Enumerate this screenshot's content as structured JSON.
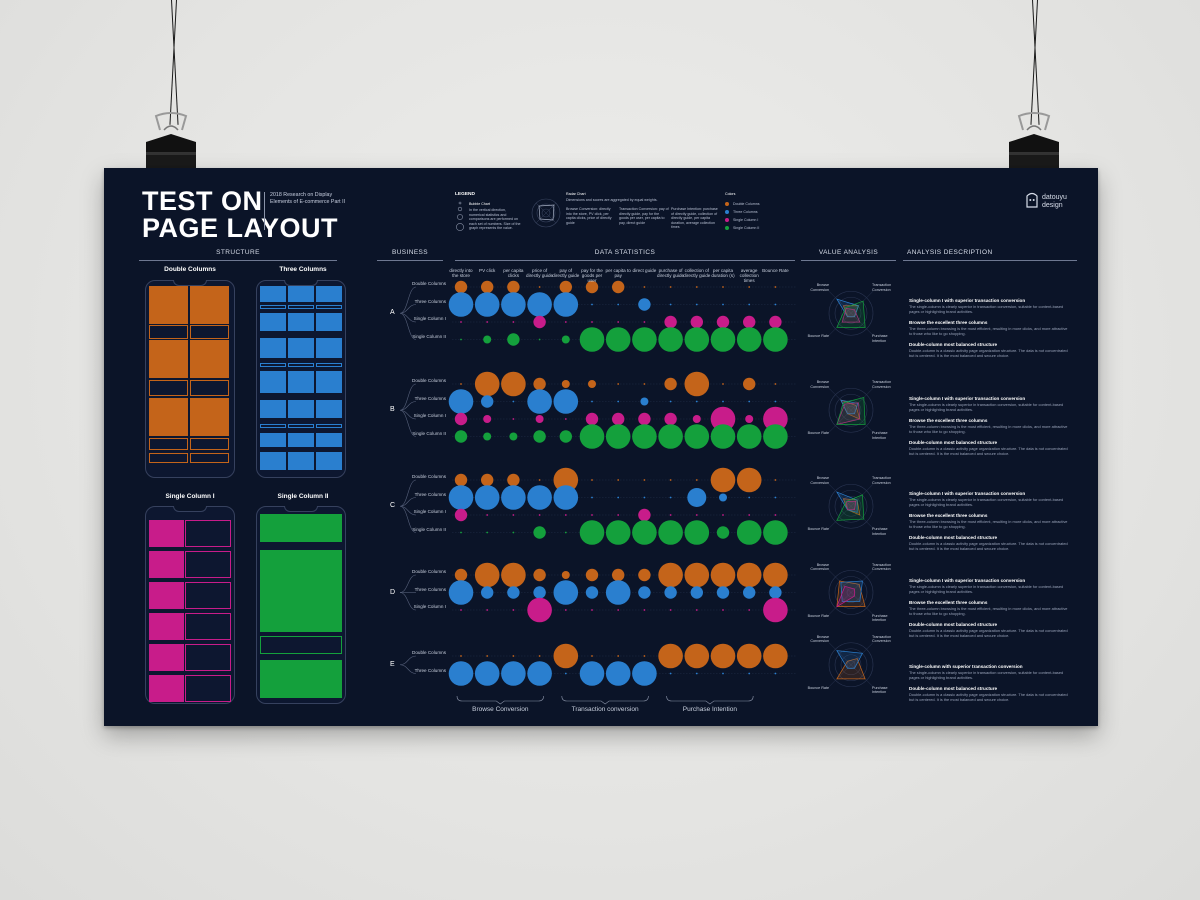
{
  "poster": {
    "title": "TEST ON\nPAGE LAYOUT",
    "subtitle": "2018 Research on Display Elements of E-commerce Part II",
    "brand": {
      "name_line1": "datouyu",
      "name_line2": "design"
    }
  },
  "sections": {
    "structure": "STRUCTURE",
    "business": "BUSINESS",
    "data_statistics": "DATA STATISTICS",
    "value_analysis": "VALUE ANALYSIS",
    "analysis_description": "ANALYSIS DESCRIPTION"
  },
  "layouts": [
    {
      "label": "Double Columns",
      "color": "#c4641a"
    },
    {
      "label": "Three Columns",
      "color": "#2a7fcf"
    },
    {
      "label": "Single Column I",
      "color": "#c81c8a"
    },
    {
      "label": "Single Column II",
      "color": "#14a03c"
    }
  ],
  "legend": {
    "heading": "LEGEND",
    "bubble_heading": "Bubble Chart",
    "bubble_text": "In the vertical direction, numerical statistics and comparisons are performed on each set of numbers. Size of the graph represents the value.",
    "radar_heading": "Radar Chart",
    "radar_text": "Dimensions and scores are aggregated by equal weights.",
    "radar_col1": "Browse Conversion: directly into the store, PV click, per capita clicks, price of directly guide",
    "radar_col2": "Transaction Conversion: pay of directly guide, pay for the goods per user, per capita to pay, direct guide",
    "radar_col3": "Purchase Intention: purchase of directly guide, collection of directly guide, per capita duration, average collection times",
    "colors_heading": "Colors",
    "colors": [
      "Double Columns",
      "Three Columns",
      "Single Column I",
      "Single Column II"
    ]
  },
  "columns": [
    "directly into the store",
    "PV click",
    "per capita clicks",
    "price of directly guide",
    "pay of directly guide",
    "pay for the goods per user",
    "per capita to pay",
    "direct guide",
    "purchase of directly guide",
    "collection of directly guide",
    "per capita duration (s)",
    "average collection times",
    "Bounce Rate"
  ],
  "groups": [
    {
      "name": "A",
      "rows": [
        {
          "label": "Double Columns",
          "color": "#c4641a",
          "sizes": [
            1,
            1,
            1,
            0,
            1,
            1,
            1,
            0,
            0,
            0,
            0,
            0,
            0
          ]
        },
        {
          "label": "Three Columns",
          "color": "#2a7fcf",
          "sizes": [
            2,
            2,
            2,
            2,
            2,
            0,
            0,
            1,
            0,
            0,
            0,
            0,
            0
          ]
        },
        {
          "label": "Single Column I",
          "color": "#c81c8a",
          "sizes": [
            0,
            0,
            0,
            1,
            0,
            0,
            0,
            0,
            1,
            1,
            1,
            1,
            1
          ]
        },
        {
          "label": "Single Column II",
          "color": "#14a03c",
          "sizes": [
            0,
            0.5,
            1,
            0,
            0.5,
            2,
            2,
            2,
            2,
            2,
            2,
            2,
            2
          ]
        }
      ]
    },
    {
      "name": "B",
      "rows": [
        {
          "label": "Double Columns",
          "color": "#c4641a",
          "sizes": [
            0,
            2,
            2,
            1,
            0.5,
            0.5,
            0,
            0,
            1,
            2,
            0,
            1,
            0
          ]
        },
        {
          "label": "Three Columns",
          "color": "#2a7fcf",
          "sizes": [
            2,
            1,
            0,
            2,
            2,
            0,
            0,
            0.5,
            0,
            0,
            0,
            0,
            0
          ]
        },
        {
          "label": "Single Column I",
          "color": "#c81c8a",
          "sizes": [
            1,
            0.5,
            0,
            0.5,
            0,
            1,
            1,
            1,
            1,
            0.5,
            2,
            0.5,
            2
          ]
        },
        {
          "label": "Single Column II",
          "color": "#14a03c",
          "sizes": [
            1,
            0.5,
            0.5,
            1,
            1,
            2,
            2,
            2,
            2,
            2,
            2,
            2,
            2
          ]
        }
      ]
    },
    {
      "name": "C",
      "rows": [
        {
          "label": "Double Columns",
          "color": "#c4641a",
          "sizes": [
            1,
            1,
            1,
            0,
            2,
            0,
            0,
            0,
            0,
            0,
            2,
            2,
            0
          ]
        },
        {
          "label": "Three Columns",
          "color": "#2a7fcf",
          "sizes": [
            2,
            2,
            2,
            2,
            2,
            0,
            0,
            0,
            0,
            1.5,
            0.5,
            0,
            0
          ]
        },
        {
          "label": "Single Column I",
          "color": "#c81c8a",
          "sizes": [
            1,
            0,
            0,
            0,
            0,
            0,
            0,
            1,
            0,
            0,
            0,
            0,
            0
          ]
        },
        {
          "label": "Single Column II",
          "color": "#14a03c",
          "sizes": [
            0,
            0,
            0,
            1,
            0,
            2,
            2,
            2,
            2,
            2,
            1,
            2,
            2
          ]
        }
      ]
    },
    {
      "name": "D",
      "rows": [
        {
          "label": "Double Columns",
          "color": "#c4641a",
          "sizes": [
            1,
            2,
            2,
            1,
            0.5,
            1,
            1,
            1,
            2,
            2,
            2,
            2,
            2
          ]
        },
        {
          "label": "Three Columns",
          "color": "#2a7fcf",
          "sizes": [
            2,
            1,
            1,
            1,
            2,
            1,
            2,
            1,
            1,
            1,
            1,
            1,
            1
          ]
        },
        {
          "label": "Single Column I",
          "color": "#c81c8a",
          "sizes": [
            0,
            0,
            0,
            2,
            0,
            0,
            0,
            0,
            0,
            0,
            0,
            0,
            2
          ]
        }
      ]
    },
    {
      "name": "E",
      "rows": [
        {
          "label": "Double Columns",
          "color": "#c4641a",
          "sizes": [
            0,
            0,
            0,
            0,
            2,
            0,
            0,
            0,
            2,
            2,
            2,
            2,
            2
          ]
        },
        {
          "label": "Three Columns",
          "color": "#2a7fcf",
          "sizes": [
            2,
            2,
            2,
            2,
            0,
            2,
            2,
            2,
            0,
            0,
            0,
            0,
            0
          ]
        }
      ]
    }
  ],
  "brackets": [
    "Browse Conversion",
    "Transaction conversion",
    "Purchase Intention"
  ],
  "radar_labels": {
    "browse": "Browse Conversion",
    "transaction": "Transaction Conversion",
    "bounce": "Bounce Rate",
    "purchase": "Purchase Intention"
  },
  "descriptions": [
    {
      "items": [
        {
          "heading": "Single-column I with superior transaction conversion",
          "text": "The single-column is clearly superior in transaction conversion, suitable for content-based pages or highlighting brand activities."
        },
        {
          "heading": "Browse the excellent three columns",
          "text": "The three-column browsing is the most efficient, resulting in more clicks, and more attractive to those who like to go shopping."
        },
        {
          "heading": "Double-column most balanced structure",
          "text": "Double-column is a classic activity page organization structure. The data is not concentrated but is centered. It is the most balanced and secure choice."
        }
      ]
    },
    {
      "items": [
        {
          "heading": "Single-column I with superior transaction conversion",
          "text": "The single-column is clearly superior in transaction conversion, suitable for content-based pages or highlighting brand activities."
        },
        {
          "heading": "Browse the excellent three columns",
          "text": "The three-column browsing is the most efficient, resulting in more clicks, and more attractive to those who like to go shopping."
        },
        {
          "heading": "Double-column most balanced structure",
          "text": "Double-column is a classic activity page organization structure. The data is not concentrated but is centered. It is the most balanced and secure choice."
        }
      ]
    },
    {
      "items": [
        {
          "heading": "Single-column I with superior transaction conversion",
          "text": "The single-column is clearly superior in transaction conversion, suitable for content-based pages or highlighting brand activities."
        },
        {
          "heading": "Browse the excellent three columns",
          "text": "The three-column browsing is the most efficient, resulting in more clicks, and more attractive to those who like to go shopping."
        },
        {
          "heading": "Double-column most balanced structure",
          "text": "Double-column is a classic activity page organization structure. The data is not concentrated but is centered. It is the most balanced and secure choice."
        }
      ]
    },
    {
      "items": [
        {
          "heading": "Single-column I with superior transaction conversion",
          "text": "The single-column is clearly superior in transaction conversion, suitable for content-based pages or highlighting brand activities."
        },
        {
          "heading": "Browse the excellent three columns",
          "text": "The three-column browsing is the most efficient, resulting in more clicks, and more attractive to those who like to go shopping."
        },
        {
          "heading": "Double-column most balanced structure",
          "text": "Double-column is a classic activity page organization structure. The data is not concentrated but is centered. It is the most balanced and secure choice."
        }
      ]
    },
    {
      "items": [
        {
          "heading": "Single-column with superior transaction conversion",
          "text": "The single-column is clearly superior in transaction conversion, suitable for content-based pages or highlighting brand activities."
        },
        {
          "heading": "Double-column most balanced structure",
          "text": "Double-column is a classic activity page organization structure. The data is not concentrated but is centered. It is the most balanced and secure choice."
        }
      ]
    }
  ]
}
